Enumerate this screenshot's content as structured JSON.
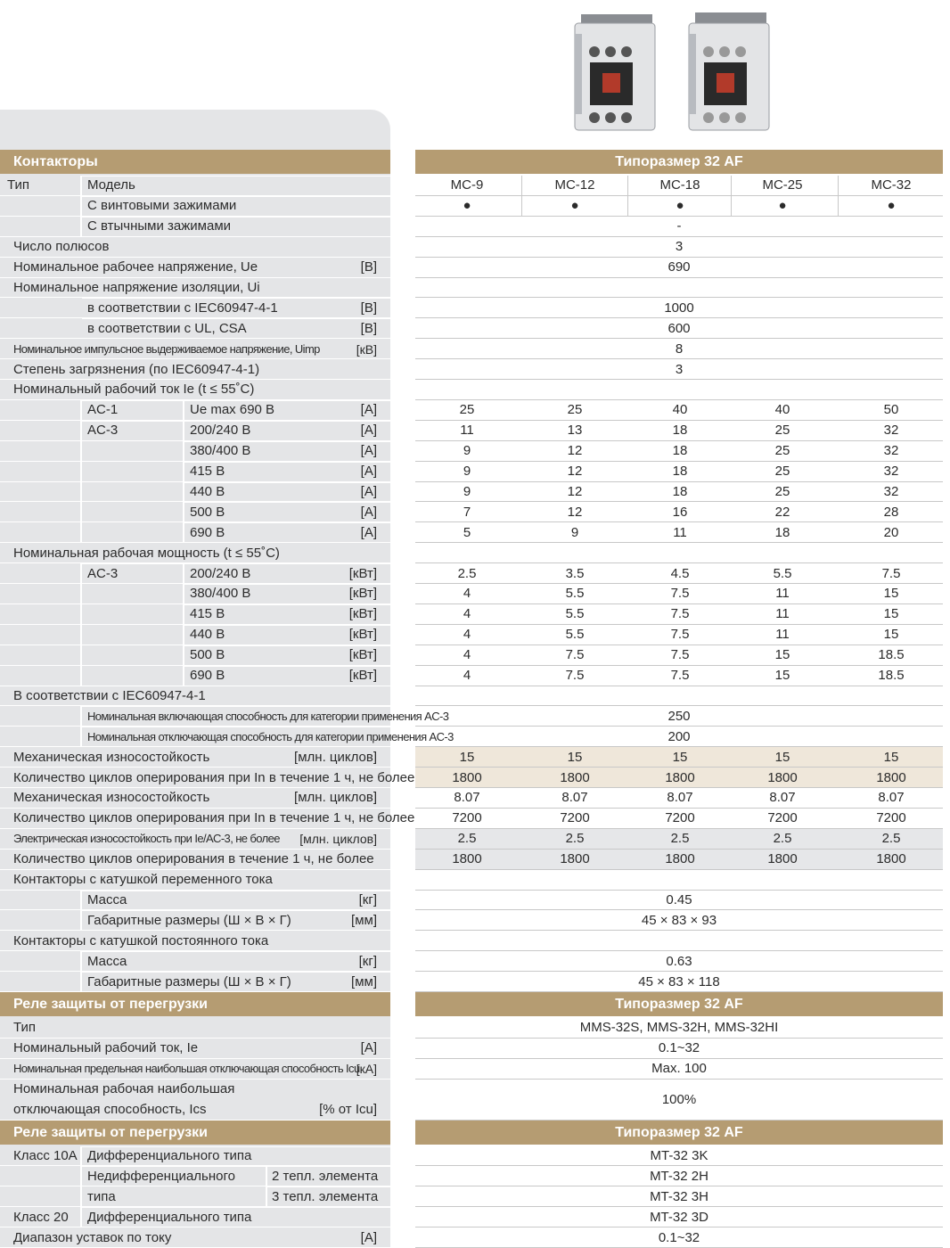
{
  "sections": [
    {
      "title": "Контакторы",
      "size_title": "Типоразмер 32 AF",
      "rows": [
        {
          "cells": [
            "Тип",
            "Модель"
          ],
          "values": [
            "MC-9",
            "MC-12",
            "MC-18",
            "MC-25",
            "MC-32"
          ]
        },
        {
          "cells": [
            "С винтовыми зажимами"
          ],
          "values": [
            "●",
            "●",
            "●",
            "●",
            "●"
          ]
        },
        {
          "cells": [
            "С втычными зажимами"
          ],
          "value": "-"
        },
        {
          "cells": [
            "Число полюсов"
          ],
          "value": "3"
        },
        {
          "cells": [
            "Номинальное рабочее напряжение, Ue"
          ],
          "unit": "[В]",
          "value": "690"
        },
        {
          "cells": [
            "Номинальное напряжение изоляции, Ui"
          ]
        },
        {
          "cells": [
            "в соответствии с IEC60947-4-1"
          ],
          "unit": "[В]",
          "value": "1000"
        },
        {
          "cells": [
            "в соответствии с UL, CSA"
          ],
          "unit": "[В]",
          "value": "600"
        },
        {
          "cells": [
            "Номинальное импульсное выдерживаемое напряжение, Uimp"
          ],
          "unit": "[кВ]",
          "value": "8"
        },
        {
          "cells": [
            "Степень загрязнения (по IEC60947-4-1)"
          ],
          "value": "3"
        },
        {
          "cells": [
            "Номинальный рабочий ток Ie (t ≤ 55˚C)"
          ]
        },
        {
          "cells": [
            "AC-1",
            "Ue max 690 В"
          ],
          "unit": "[A]",
          "values": [
            "25",
            "25",
            "40",
            "40",
            "50"
          ]
        },
        {
          "cells": [
            "AC-3",
            "200/240 В"
          ],
          "unit": "[A]",
          "values": [
            "11",
            "13",
            "18",
            "25",
            "32"
          ]
        },
        {
          "cells": [
            "380/400 В"
          ],
          "unit": "[A]",
          "values": [
            "9",
            "12",
            "18",
            "25",
            "32"
          ]
        },
        {
          "cells": [
            "415 В"
          ],
          "unit": "[A]",
          "values": [
            "9",
            "12",
            "18",
            "25",
            "32"
          ]
        },
        {
          "cells": [
            "440 В"
          ],
          "unit": "[A]",
          "values": [
            "9",
            "12",
            "18",
            "25",
            "32"
          ]
        },
        {
          "cells": [
            "500 В"
          ],
          "unit": "[A]",
          "values": [
            "7",
            "12",
            "16",
            "22",
            "28"
          ]
        },
        {
          "cells": [
            "690 В"
          ],
          "unit": "[A]",
          "values": [
            "5",
            "9",
            "11",
            "18",
            "20"
          ]
        },
        {
          "cells": [
            "Номинальная рабочая мощность (t ≤ 55˚C)"
          ]
        },
        {
          "cells": [
            "AC-3",
            "200/240 В"
          ],
          "unit": "[кВт]",
          "values": [
            "2.5",
            "3.5",
            "4.5",
            "5.5",
            "7.5"
          ]
        },
        {
          "cells": [
            "380/400 В"
          ],
          "unit": "[кВт]",
          "values": [
            "4",
            "5.5",
            "7.5",
            "11",
            "15"
          ]
        },
        {
          "cells": [
            "415 В"
          ],
          "unit": "[кВт]",
          "values": [
            "4",
            "5.5",
            "7.5",
            "11",
            "15"
          ]
        },
        {
          "cells": [
            "440 В"
          ],
          "unit": "[кВт]",
          "values": [
            "4",
            "5.5",
            "7.5",
            "11",
            "15"
          ]
        },
        {
          "cells": [
            "500 В"
          ],
          "unit": "[кВт]",
          "values": [
            "4",
            "7.5",
            "7.5",
            "15",
            "18.5"
          ]
        },
        {
          "cells": [
            "690 В"
          ],
          "unit": "[кВт]",
          "values": [
            "4",
            "7.5",
            "7.5",
            "15",
            "18.5"
          ]
        },
        {
          "cells": [
            "В соответствии с IEC60947-4-1"
          ]
        },
        {
          "cells": [
            "Номинальная включающая способность для категории применения AC-3"
          ],
          "value": "250"
        },
        {
          "cells": [
            "Номинальная отключающая способность для категории применения AC-3"
          ],
          "value": "200"
        },
        {
          "cells": [
            "Механическая износостойкость"
          ],
          "unit": "[млн. циклов]",
          "values": [
            "15",
            "15",
            "15",
            "15",
            "15"
          ]
        },
        {
          "cells": [
            "Количество циклов оперирования при In в течение 1 ч, не более"
          ],
          "values": [
            "1800",
            "1800",
            "1800",
            "1800",
            "1800"
          ]
        },
        {
          "cells": [
            "Механическая износостойкость"
          ],
          "unit": "[млн. циклов]",
          "values": [
            "8.07",
            "8.07",
            "8.07",
            "8.07",
            "8.07"
          ]
        },
        {
          "cells": [
            "Количество циклов оперирования при In в течение 1 ч, не более"
          ],
          "values": [
            "7200",
            "7200",
            "7200",
            "7200",
            "7200"
          ]
        },
        {
          "cells": [
            "Электрическая износостойкость при Ie/AC-3, не более"
          ],
          "unit": "[млн. циклов]",
          "values": [
            "2.5",
            "2.5",
            "2.5",
            "2.5",
            "2.5"
          ]
        },
        {
          "cells": [
            "Количество циклов оперирования в течение 1 ч, не более"
          ],
          "values": [
            "1800",
            "1800",
            "1800",
            "1800",
            "1800"
          ]
        },
        {
          "cells": [
            "Контакторы с катушкой переменного тока"
          ]
        },
        {
          "cells": [
            "Масса"
          ],
          "unit": "[кг]",
          "value": "0.45"
        },
        {
          "cells": [
            "Габаритные размеры (Ш × В × Г)"
          ],
          "unit": "[мм]",
          "value": "45 × 83 × 93"
        },
        {
          "cells": [
            "Контакторы с катушкой постоянного тока"
          ]
        },
        {
          "cells": [
            "Масса"
          ],
          "unit": "[кг]",
          "value": "0.63"
        },
        {
          "cells": [
            "Габаритные размеры (Ш × В × Г)"
          ],
          "unit": "[мм]",
          "value": "45 × 83 × 118"
        }
      ]
    },
    {
      "title": "Реле защиты от перегрузки",
      "size_title": "Типоразмер 32 AF",
      "rows": [
        {
          "cells": [
            "Тип"
          ],
          "value": "MMS-32S, MMS-32H, MMS-32HI"
        },
        {
          "cells": [
            "Номинальный рабочий ток, Ie"
          ],
          "unit": "[A]",
          "value": "0.1~32"
        },
        {
          "cells": [
            "Номинальная предельная наибольшая отключающая способность Icu"
          ],
          "unit": "[кА]",
          "value": "Max. 100"
        },
        {
          "cells": [
            "Номинальная рабочая наибольшая",
            "отключающая способность, Ics"
          ],
          "unit": "[% от Icu]",
          "value": "100%"
        }
      ]
    },
    {
      "title": "Реле защиты от перегрузки",
      "size_title": "Типоразмер 32 AF",
      "rows": [
        {
          "cells": [
            "Класс 10A",
            "Дифференциального типа"
          ],
          "value": "MT-32 3K"
        },
        {
          "cells": [
            "Недифференциального",
            "типа",
            "2 тепл. элемента"
          ],
          "value": "MT-32 2H"
        },
        {
          "cells": [
            "3 тепл. элемента"
          ],
          "value": "MT-32 3H"
        },
        {
          "cells": [
            "Класс 20",
            "Дифференциального типа"
          ],
          "value": "MT-32 3D"
        },
        {
          "cells": [
            "Диапазон уставок по току"
          ],
          "unit": "[A]",
          "value": "0.1~32"
        }
      ]
    }
  ]
}
